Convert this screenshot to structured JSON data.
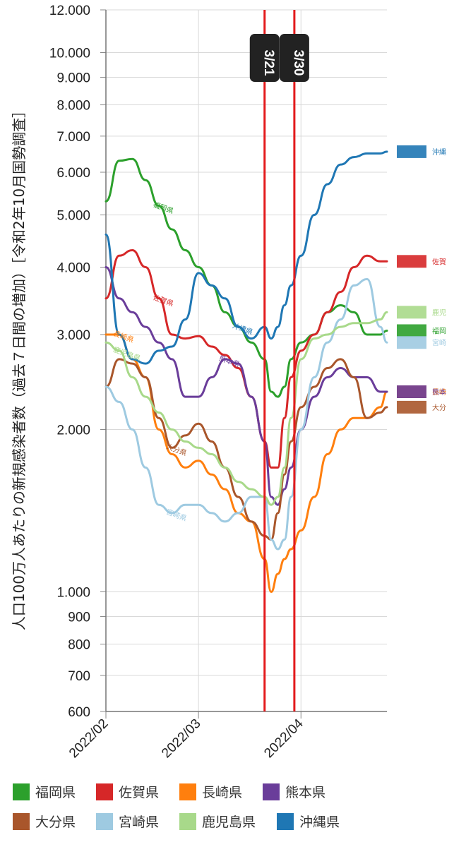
{
  "chart_data": {
    "type": "line",
    "ylabel": "人口100万人あたりの新規感染者数（過去７日間の増加）［令和2年10月国勢調査］",
    "y_scale": "log",
    "ylim": [
      600,
      12000
    ],
    "yticks": [
      600,
      700,
      800,
      900,
      1000,
      2000,
      3000,
      4000,
      5000,
      6000,
      7000,
      8000,
      9000,
      10000,
      12000
    ],
    "ytick_labels": [
      "600",
      "700",
      "800",
      "900",
      "1.000",
      "2.000",
      "3.000",
      "4.000",
      "5.000",
      "6.000",
      "7.000",
      "8.000",
      "9.000",
      "10.000",
      "12.000"
    ],
    "xlim": [
      "2022-02-01",
      "2022-04-27"
    ],
    "xticks": [
      {
        "date": "2022-02-01",
        "label": "2022/02"
      },
      {
        "date": "2022-03-01",
        "label": "2022/03"
      },
      {
        "date": "2022-04-01",
        "label": "2022/04"
      }
    ],
    "markers": [
      {
        "date": "2022-03-21",
        "label": "3/21"
      },
      {
        "date": "2022-03-30",
        "label": "3/30"
      }
    ],
    "grid": true,
    "legend_position": "bottom",
    "x": [
      "2022-02-01",
      "2022-02-05",
      "2022-02-09",
      "2022-02-13",
      "2022-02-17",
      "2022-02-21",
      "2022-02-25",
      "2022-03-01",
      "2022-03-05",
      "2022-03-09",
      "2022-03-13",
      "2022-03-17",
      "2022-03-21",
      "2022-03-23",
      "2022-03-25",
      "2022-03-27",
      "2022-03-29",
      "2022-04-01",
      "2022-04-05",
      "2022-04-09",
      "2022-04-13",
      "2022-04-17",
      "2022-04-21",
      "2022-04-25",
      "2022-04-27"
    ],
    "series": [
      {
        "name": "福岡県",
        "short": "福岡",
        "color": "#2ca02c",
        "inline_label": "福岡県",
        "values": [
          5300,
          6300,
          6350,
          5800,
          5200,
          4700,
          4300,
          4000,
          3700,
          3300,
          3100,
          2900,
          2700,
          2350,
          2300,
          2400,
          2700,
          2900,
          3000,
          3300,
          3400,
          3300,
          3000,
          3000,
          3050
        ]
      },
      {
        "name": "佐賀県",
        "short": "佐賀",
        "color": "#d62728",
        "inline_label": "佐賀県",
        "values": [
          3500,
          4200,
          4300,
          4000,
          3500,
          3000,
          2950,
          2980,
          2850,
          2750,
          2600,
          2300,
          1900,
          1700,
          1700,
          2100,
          2500,
          2800,
          3000,
          3300,
          3600,
          4000,
          4200,
          4100,
          4100
        ]
      },
      {
        "name": "長崎県",
        "short": "長崎",
        "color": "#ff7f0e",
        "inline_label": "長崎県",
        "values": [
          3000,
          3000,
          2700,
          2500,
          2000,
          1800,
          1700,
          1750,
          1650,
          1550,
          1400,
          1350,
          1150,
          1000,
          1080,
          1150,
          1200,
          1300,
          1500,
          1800,
          2000,
          2100,
          2100,
          2200,
          2350
        ]
      },
      {
        "name": "熊本県",
        "short": "熊本",
        "color": "#6a3d9a",
        "inline_label": "熊本県",
        "values": [
          4000,
          3500,
          3300,
          3100,
          2900,
          2700,
          2300,
          2300,
          2500,
          2700,
          2650,
          2300,
          1900,
          1500,
          1450,
          1550,
          1700,
          2000,
          2300,
          2500,
          2600,
          2500,
          2500,
          2350,
          2350
        ]
      },
      {
        "name": "大分県",
        "short": "大分",
        "color": "#a9562b",
        "inline_label": "大分県",
        "values": [
          2400,
          2700,
          2650,
          2500,
          2100,
          1850,
          1950,
          2050,
          1900,
          1700,
          1500,
          1350,
          1270,
          1250,
          1400,
          1650,
          1900,
          2200,
          2400,
          2600,
          2700,
          2500,
          2100,
          2150,
          2200
        ]
      },
      {
        "name": "宮崎県",
        "short": "宮崎",
        "color": "#9ecae1",
        "inline_label": "宮崎県",
        "values": [
          2400,
          2250,
          2000,
          1700,
          1450,
          1400,
          1450,
          1450,
          1400,
          1350,
          1400,
          1500,
          1500,
          1250,
          1200,
          1250,
          1500,
          2000,
          2500,
          2900,
          3200,
          3700,
          3800,
          3100,
          2900
        ]
      },
      {
        "name": "鹿児島県",
        "short": "鹿児",
        "color": "#a8d98a",
        "inline_label": "鹿児島県",
        "values": [
          2900,
          2800,
          2500,
          2300,
          2150,
          2000,
          1900,
          1850,
          1800,
          1700,
          1600,
          1550,
          1500,
          1450,
          1500,
          1700,
          2100,
          2700,
          2950,
          3000,
          3100,
          3150,
          3150,
          3200,
          3300
        ]
      },
      {
        "name": "沖縄県",
        "short": "沖縄",
        "color": "#1f77b4",
        "inline_label": "沖縄県",
        "values": [
          4600,
          3000,
          2700,
          2650,
          2800,
          2850,
          3200,
          3900,
          3700,
          3500,
          3100,
          2950,
          3100,
          2950,
          3100,
          3400,
          3700,
          4200,
          5000,
          5700,
          6200,
          6400,
          6500,
          6500,
          6550
        ]
      }
    ]
  },
  "legend_items": [
    {
      "label": "福岡県"
    },
    {
      "label": "佐賀県"
    },
    {
      "label": "長崎県"
    },
    {
      "label": "熊本県"
    },
    {
      "label": "大分県"
    },
    {
      "label": "宮崎県"
    },
    {
      "label": "鹿児島県"
    },
    {
      "label": "沖縄県"
    }
  ]
}
